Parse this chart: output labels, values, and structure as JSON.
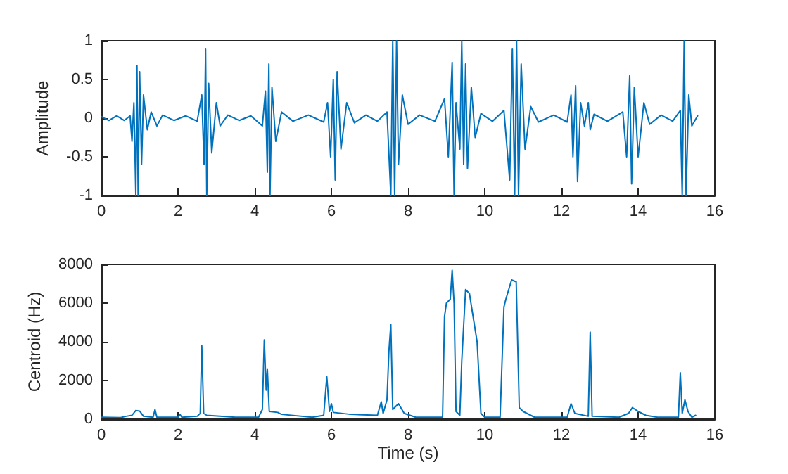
{
  "chart_data": [
    {
      "type": "line",
      "ylabel": "Amplitude",
      "xlim": [
        0,
        16
      ],
      "xticks": [
        0,
        2,
        4,
        6,
        8,
        10,
        12,
        14,
        16
      ],
      "ylim": [
        -1,
        1
      ],
      "yticks": [
        -1,
        -0.5,
        0,
        0.5,
        1
      ],
      "grid": false,
      "marker": "none",
      "series": [
        {
          "color": "#0072bd",
          "x": [
            0,
            0.2,
            0.4,
            0.6,
            0.75,
            0.8,
            0.85,
            0.9,
            0.93,
            0.96,
            1.0,
            1.05,
            1.1,
            1.2,
            1.3,
            1.45,
            1.6,
            1.9,
            2.2,
            2.5,
            2.62,
            2.68,
            2.72,
            2.75,
            2.8,
            2.88,
            3.0,
            3.1,
            3.3,
            3.6,
            3.9,
            4.2,
            4.28,
            4.33,
            4.37,
            4.4,
            4.45,
            4.55,
            4.7,
            5.0,
            5.4,
            5.8,
            5.9,
            5.98,
            6.05,
            6.1,
            6.15,
            6.25,
            6.4,
            6.6,
            6.9,
            7.2,
            7.45,
            7.55,
            7.6,
            7.65,
            7.7,
            7.75,
            7.85,
            8.0,
            8.3,
            8.7,
            8.95,
            9.05,
            9.15,
            9.2,
            9.25,
            9.35,
            9.4,
            9.45,
            9.5,
            9.55,
            9.65,
            9.75,
            9.9,
            10.2,
            10.5,
            10.65,
            10.72,
            10.78,
            10.83,
            10.88,
            10.95,
            11.05,
            11.2,
            11.4,
            11.8,
            12.15,
            12.25,
            12.3,
            12.37,
            12.42,
            12.5,
            12.6,
            12.7,
            12.75,
            12.85,
            13.2,
            13.6,
            13.7,
            13.78,
            13.83,
            13.9,
            14.0,
            14.15,
            14.3,
            14.6,
            14.9,
            15.1,
            15.15,
            15.2,
            15.25,
            15.32,
            15.4,
            15.55
          ],
          "values": [
            0.02,
            -0.03,
            0.03,
            -0.03,
            0.03,
            -0.3,
            0.2,
            -1,
            0.68,
            -1,
            0.6,
            -0.6,
            0.3,
            -0.15,
            0.08,
            -0.1,
            0.04,
            -0.03,
            0.03,
            -0.04,
            0.3,
            -0.6,
            0.9,
            -1,
            0.45,
            -0.45,
            0.2,
            -0.1,
            0.04,
            -0.03,
            0.03,
            -0.1,
            0.35,
            -0.7,
            0.7,
            -1,
            0.4,
            -0.3,
            0.08,
            -0.04,
            0.04,
            -0.05,
            0.2,
            -0.5,
            0.5,
            -0.8,
            0.6,
            -0.4,
            0.2,
            -0.06,
            0.04,
            -0.04,
            0.08,
            -1,
            1,
            -1,
            1,
            -0.6,
            0.3,
            -0.08,
            0.04,
            -0.04,
            0.25,
            -0.5,
            0.72,
            -1,
            0.2,
            -0.4,
            1,
            -0.6,
            0.7,
            -0.65,
            0.4,
            -0.25,
            0.06,
            -0.04,
            0.1,
            -0.8,
            0.9,
            -1,
            1,
            -1,
            0.7,
            -0.4,
            0.15,
            -0.05,
            0.04,
            -0.05,
            0.3,
            -0.5,
            0.42,
            -0.82,
            0.2,
            -0.1,
            0.2,
            -0.15,
            0.05,
            -0.04,
            0.08,
            -0.5,
            0.55,
            -0.85,
            0.4,
            -0.5,
            0.2,
            -0.08,
            0.04,
            -0.04,
            0.1,
            -1,
            1,
            -1,
            0.3,
            -0.1,
            0.03
          ]
        }
      ]
    },
    {
      "type": "line",
      "xlabel": "Time (s)",
      "ylabel": "Centroid (Hz)",
      "xlim": [
        0,
        16
      ],
      "xticks": [
        0,
        2,
        4,
        6,
        8,
        10,
        12,
        14,
        16
      ],
      "ylim": [
        0,
        8000
      ],
      "yticks": [
        0,
        2000,
        4000,
        6000,
        8000
      ],
      "grid": false,
      "marker": "none",
      "series": [
        {
          "color": "#0072bd",
          "x": [
            0,
            0.5,
            0.65,
            0.8,
            0.9,
            1.0,
            1.1,
            1.35,
            1.4,
            1.45,
            2.0,
            2.05,
            2.1,
            2.5,
            2.58,
            2.62,
            2.67,
            2.75,
            3.5,
            4.1,
            4.2,
            4.25,
            4.3,
            4.33,
            4.38,
            4.6,
            4.7,
            5.5,
            5.8,
            5.88,
            5.95,
            6.0,
            6.05,
            6.5,
            7.2,
            7.3,
            7.35,
            7.45,
            7.5,
            7.55,
            7.6,
            7.75,
            7.9,
            8.2,
            8.9,
            8.95,
            9.0,
            9.1,
            9.15,
            9.2,
            9.25,
            9.35,
            9.4,
            9.5,
            9.6,
            9.72,
            9.8,
            9.9,
            10.0,
            10.4,
            10.5,
            10.55,
            10.7,
            10.82,
            10.9,
            11.0,
            11.3,
            12.15,
            12.25,
            12.35,
            12.7,
            12.75,
            12.8,
            13.5,
            13.75,
            13.85,
            14.0,
            14.2,
            14.5,
            15.05,
            15.1,
            15.15,
            15.22,
            15.3,
            15.4,
            15.5
          ],
          "values": [
            100,
            80,
            150,
            200,
            450,
            420,
            150,
            100,
            500,
            100,
            100,
            250,
            100,
            150,
            300,
            3800,
            300,
            200,
            100,
            100,
            500,
            4100,
            1500,
            2600,
            400,
            350,
            250,
            100,
            200,
            2200,
            400,
            800,
            350,
            250,
            200,
            900,
            300,
            1000,
            3500,
            4900,
            500,
            800,
            300,
            100,
            100,
            5300,
            6000,
            6200,
            7700,
            6000,
            400,
            200,
            3000,
            6700,
            6500,
            5000,
            4000,
            300,
            100,
            100,
            5800,
            6200,
            7200,
            7100,
            600,
            400,
            100,
            100,
            800,
            300,
            150,
            4500,
            150,
            100,
            300,
            600,
            400,
            200,
            100,
            100,
            2400,
            300,
            1000,
            400,
            100,
            200
          ]
        }
      ]
    }
  ]
}
